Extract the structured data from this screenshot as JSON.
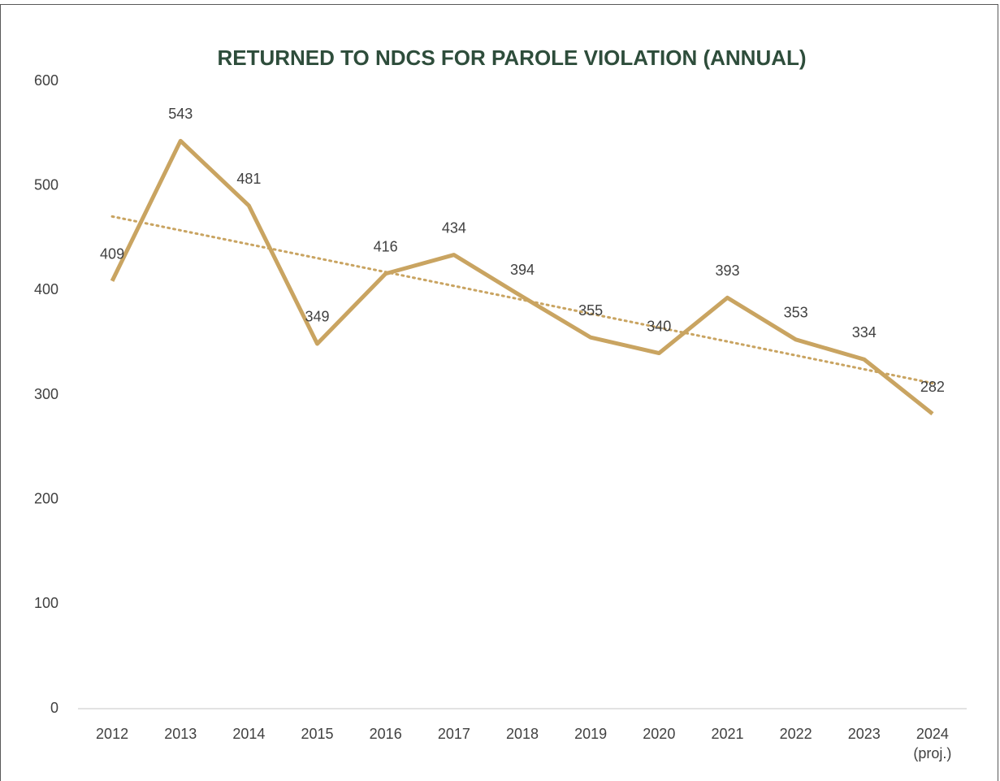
{
  "chart_data": {
    "type": "line",
    "title": "RETURNED TO NDCS FOR PAROLE VIOLATION (ANNUAL)",
    "categories": [
      "2012",
      "2013",
      "2014",
      "2015",
      "2016",
      "2017",
      "2018",
      "2019",
      "2020",
      "2021",
      "2022",
      "2023",
      "2024 (proj.)"
    ],
    "values": [
      409,
      543,
      481,
      349,
      416,
      434,
      394,
      355,
      340,
      393,
      353,
      334,
      282
    ],
    "color": "#c9a461",
    "trendline": "linear",
    "data_labels": true,
    "ylim": [
      0,
      600
    ],
    "yticks": [
      0,
      100,
      200,
      300,
      400,
      500,
      600
    ],
    "grid": false
  }
}
